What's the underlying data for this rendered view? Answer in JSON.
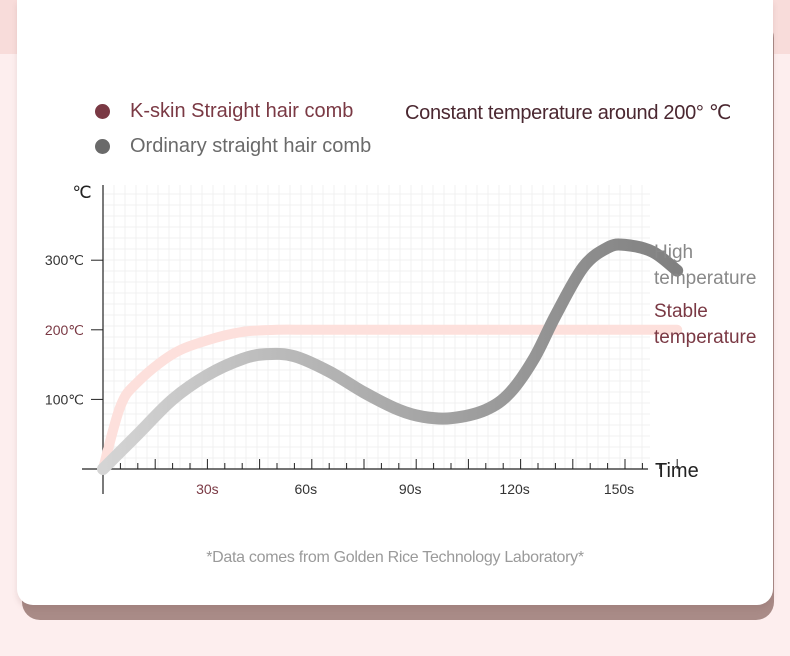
{
  "legend": {
    "kskin_label": "K-skin Straight hair comb",
    "ordinary_label": "Ordinary straight hair comb",
    "constant_note": "Constant temperature around 200° ℃"
  },
  "footnote": "*Data comes from Golden Rice Technology Laboratory*",
  "colors": {
    "kskin": "#7a3944",
    "ordinary": "#6a6a6a",
    "stable_curve": "#fde0dc"
  },
  "chart_data": {
    "type": "line",
    "title": "",
    "xlabel": "Time",
    "ylabel": "℃",
    "xlim": [
      0,
      165
    ],
    "ylim": [
      -20,
      380
    ],
    "x_ticks": [
      {
        "value": 30,
        "label": "30s"
      },
      {
        "value": 60,
        "label": "60s"
      },
      {
        "value": 90,
        "label": "90s"
      },
      {
        "value": 120,
        "label": "120s"
      },
      {
        "value": 150,
        "label": "150s"
      }
    ],
    "y_ticks": [
      {
        "value": 100,
        "label": "100℃"
      },
      {
        "value": 200,
        "label": "200℃"
      },
      {
        "value": 300,
        "label": "300℃"
      }
    ],
    "series": [
      {
        "name": "K-skin Straight hair comb",
        "end_label": [
          "Stable",
          "temperature"
        ],
        "x": [
          0,
          5,
          10,
          20,
          30,
          40,
          50,
          60,
          80,
          100,
          120,
          140,
          165
        ],
        "y": [
          0,
          90,
          125,
          165,
          185,
          197,
          200,
          200,
          200,
          200,
          200,
          200,
          200
        ]
      },
      {
        "name": "Ordinary straight hair comb",
        "end_label": [
          "High",
          "temperature"
        ],
        "x": [
          0,
          10,
          20,
          30,
          40,
          47,
          55,
          65,
          75,
          85,
          92,
          100,
          110,
          117,
          124,
          130,
          138,
          145,
          150,
          158,
          165
        ],
        "y": [
          0,
          50,
          100,
          135,
          158,
          165,
          162,
          140,
          110,
          85,
          75,
          73,
          85,
          110,
          160,
          220,
          290,
          318,
          322,
          312,
          285
        ]
      }
    ]
  }
}
